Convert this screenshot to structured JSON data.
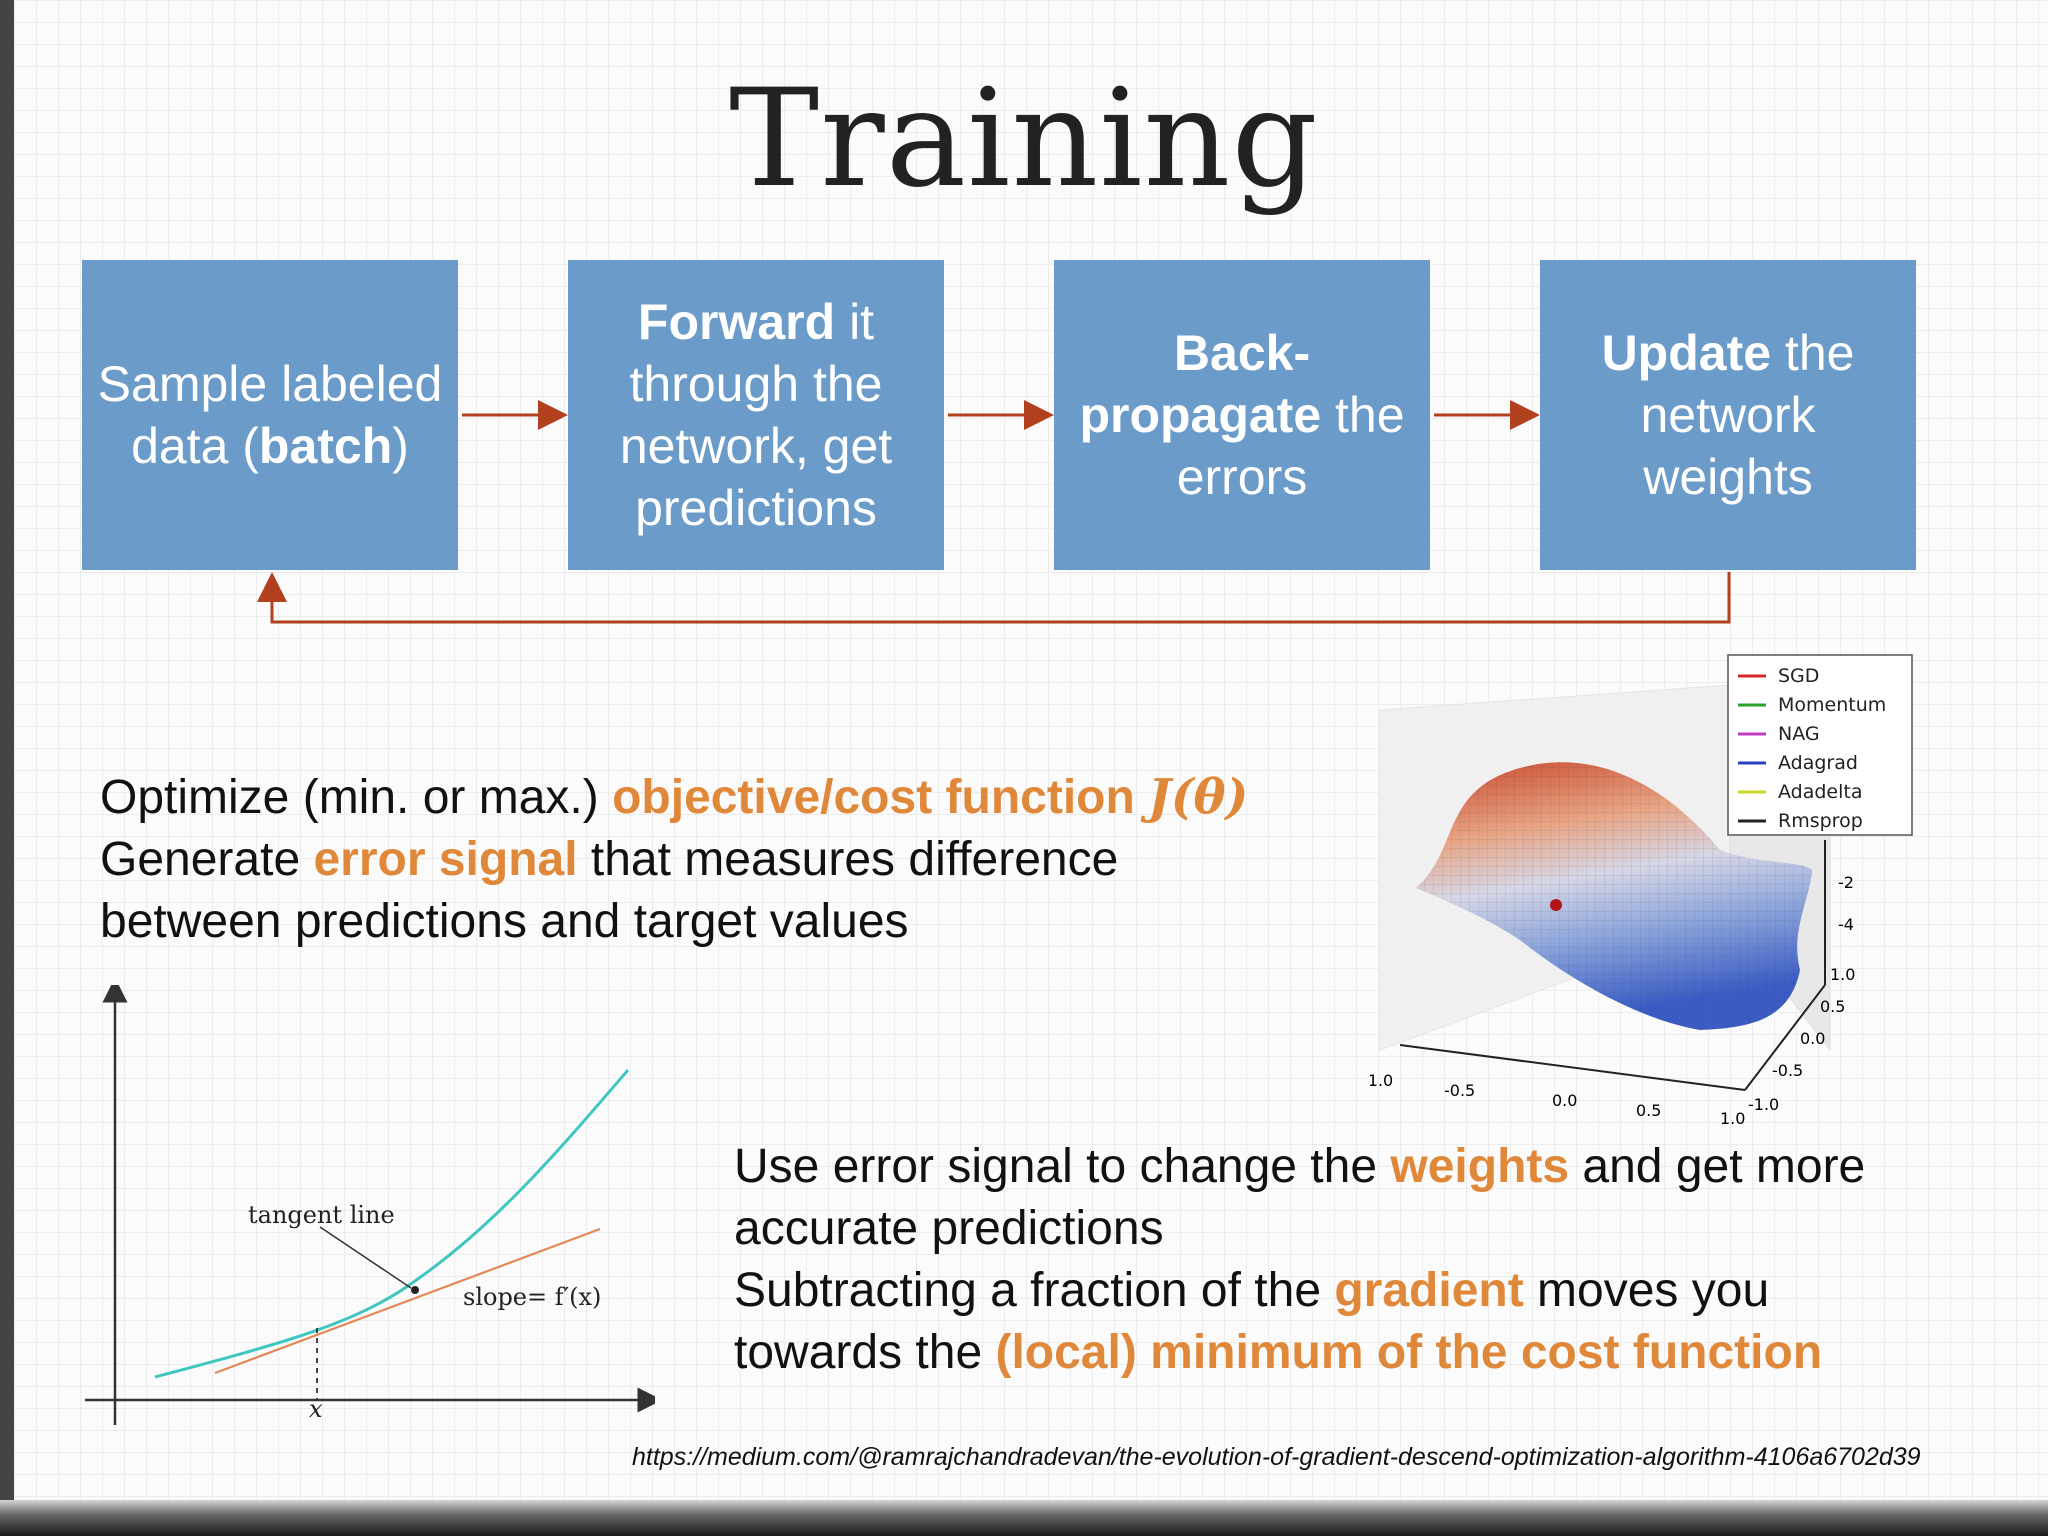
{
  "title": "Training",
  "steps": [
    {
      "pre": "",
      "bold": "",
      "post": "Sample labeled data (",
      "bold2": "batch",
      "post2": ")"
    },
    {
      "pre": "",
      "bold": "Forward",
      "post": " it through the network, get predictions",
      "bold2": "",
      "post2": ""
    },
    {
      "pre": "",
      "bold": "Back-propagate",
      "post": " the errors",
      "bold2": "",
      "post2": ""
    },
    {
      "pre": "",
      "bold": "Update",
      "post": " the network weights",
      "bold2": "",
      "post2": ""
    }
  ],
  "paragraph1": {
    "line1_pre": "Optimize (min. or max.) ",
    "line1_hl": "objective/cost function ",
    "line1_math": "J(θ)",
    "line2_pre": "Generate ",
    "line2_hl": "error signal",
    "line2_post": " that measures difference",
    "line3": "between predictions and target values"
  },
  "paragraph2": {
    "line1_pre": "Use error signal to change the ",
    "line1_hl": "weights",
    "line1_post": " and get more",
    "line2": "accurate predictions",
    "line3_pre": "Subtracting a fraction of the ",
    "line3_hl": "gradient",
    "line3_post": " moves you",
    "line4_pre": "towards the ",
    "line4_hl": "(local) minimum of the cost function"
  },
  "tangent_plot": {
    "annotation": "tangent line",
    "slope_label": "slope= f′(x)",
    "x_label": "x"
  },
  "surface_plot": {
    "legend": [
      {
        "name": "SGD",
        "color": "#d62728"
      },
      {
        "name": "Momentum",
        "color": "#2ca02c"
      },
      {
        "name": "NAG",
        "color": "#c03cc0"
      },
      {
        "name": "Adagrad",
        "color": "#2a3fbf"
      },
      {
        "name": "Adadelta",
        "color": "#c9d82a"
      },
      {
        "name": "Rmsprop",
        "color": "#222222"
      }
    ],
    "z_ticks": [
      "-2",
      "-4"
    ],
    "y_ticks": [
      "1.0",
      "0.5",
      "0.0",
      "-0.5",
      "-1.0"
    ],
    "x_ticks": [
      "-1.0",
      "-0.5",
      "0.0",
      "0.5",
      "1.0"
    ]
  },
  "source_url": "https://medium.com/@ramrajchandradevan/the-evolution-of-gradient-descend-optimization-algorithm-4106a6702d39",
  "colors": {
    "box": "#6b9bc8",
    "arrow": "#b2401e",
    "highlight": "#e0883a"
  }
}
